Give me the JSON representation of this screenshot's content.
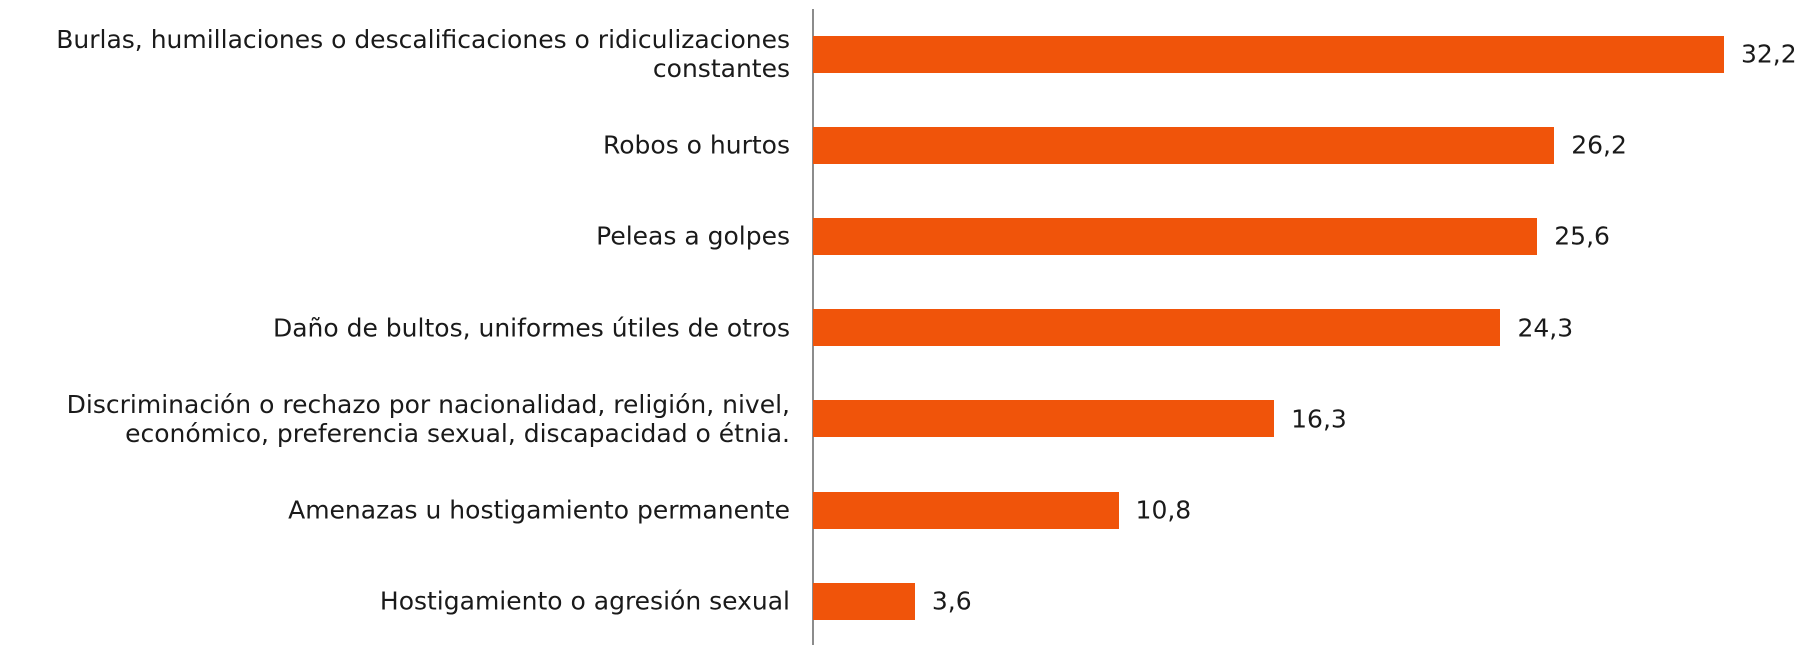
{
  "chart_data": {
    "type": "bar",
    "orientation": "horizontal",
    "categories": [
      "Burlas, humillaciones o descalificaciones o ridiculizaciones constantes",
      "Robos o hurtos",
      "Peleas a golpes",
      "Daño de bultos, uniformes útiles de otros",
      "Discriminación o rechazo por nacionalidad, religión, nivel, económico, preferencia sexual, discapacidad o étnia.",
      "Amenazas u hostigamiento permanente",
      "Hostigamiento o agresión sexual"
    ],
    "values": [
      32.2,
      26.2,
      25.6,
      24.3,
      16.3,
      10.8,
      3.6
    ],
    "value_labels": [
      "32,2",
      "26,2",
      "25,6",
      "24,3",
      "16,3",
      "10,8",
      "3,6"
    ],
    "color": "#f0540a"
  }
}
